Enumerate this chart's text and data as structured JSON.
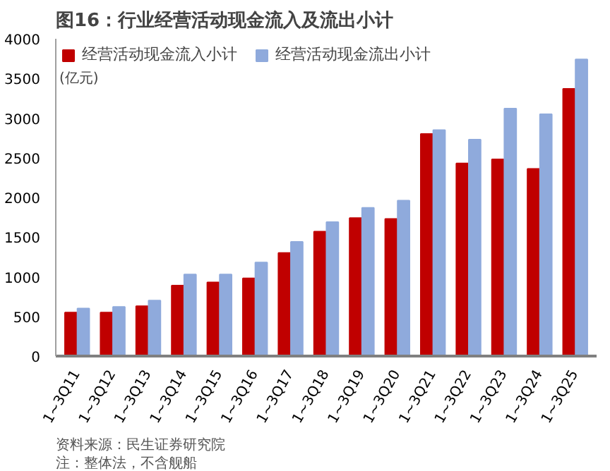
{
  "chart_data": {
    "type": "bar",
    "title": "图16：行业经营活动现金流入及流出小计",
    "ylabel": "(亿元)",
    "categories": [
      "1~3Q11",
      "1~3Q12",
      "1~3Q13",
      "1~3Q14",
      "1~3Q15",
      "1~3Q16",
      "1~3Q17",
      "1~3Q18",
      "1~3Q19",
      "1~3Q20",
      "1~3Q21",
      "1~3Q22",
      "1~3Q23",
      "1~3Q24",
      "1~3Q25"
    ],
    "series": [
      {
        "name": "经营活动现金流入小计",
        "color": "#c00000",
        "values": [
          550,
          550,
          630,
          890,
          930,
          980,
          1300,
          1570,
          1740,
          1730,
          2800,
          2430,
          2480,
          2360,
          3370
        ]
      },
      {
        "name": "经营活动现金流出小计",
        "color": "#8faadc",
        "values": [
          600,
          620,
          700,
          1030,
          1030,
          1180,
          1440,
          1690,
          1870,
          1960,
          2850,
          2730,
          3120,
          3050,
          3740
        ]
      }
    ],
    "ylim": [
      0,
      4000
    ],
    "yticks": [
      0,
      500,
      1000,
      1500,
      2000,
      2500,
      3000,
      3500,
      4000
    ],
    "grid": false,
    "legend": "top",
    "annotations": [
      "资料来源：民生证券研究院",
      "注：整体法，不含舰船"
    ]
  }
}
